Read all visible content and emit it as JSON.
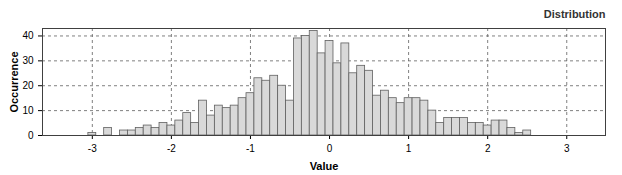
{
  "chart_data": {
    "type": "histogram",
    "title": "Distribution",
    "x_label": "Value",
    "y_label": "Occurrence",
    "bins": [
      -3.05,
      -2.95,
      -2.85,
      -2.75,
      -2.65,
      -2.55,
      -2.45,
      -2.35,
      -2.25,
      -2.15,
      -2.05,
      -1.95,
      -1.85,
      -1.75,
      -1.65,
      -1.55,
      -1.45,
      -1.35,
      -1.25,
      -1.15,
      -1.05,
      -0.95,
      -0.85,
      -0.75,
      -0.65,
      -0.55,
      -0.45,
      -0.35,
      -0.25,
      -0.15,
      -0.05,
      0.05,
      0.15,
      0.25,
      0.35,
      0.45,
      0.55,
      0.65,
      0.75,
      0.85,
      0.95,
      1.05,
      1.15,
      1.25,
      1.35,
      1.45,
      1.55,
      1.65,
      1.75,
      1.85,
      1.95,
      2.05,
      2.15,
      2.25,
      2.35,
      2.45,
      2.55
    ],
    "values": [
      1,
      0,
      3,
      0,
      2,
      2,
      3,
      4,
      3,
      5,
      4,
      6,
      9,
      5,
      14,
      8,
      12,
      11,
      12,
      15,
      17,
      23,
      22,
      24,
      20,
      14,
      39,
      40,
      42,
      33,
      38,
      29,
      37,
      25,
      28,
      26,
      16,
      18,
      15,
      13,
      15,
      15,
      14,
      10,
      5,
      7,
      7,
      7,
      5,
      5,
      4,
      6,
      6,
      3,
      1,
      2
    ],
    "color": "#d9d9d9",
    "xlim": [
      -3.63,
      3.49
    ],
    "xticks": [
      -3,
      -2,
      -1,
      0,
      1,
      2,
      3
    ],
    "ylim": [
      0,
      43
    ],
    "yticks": [
      0,
      10,
      20,
      30,
      40
    ],
    "grid": true
  }
}
